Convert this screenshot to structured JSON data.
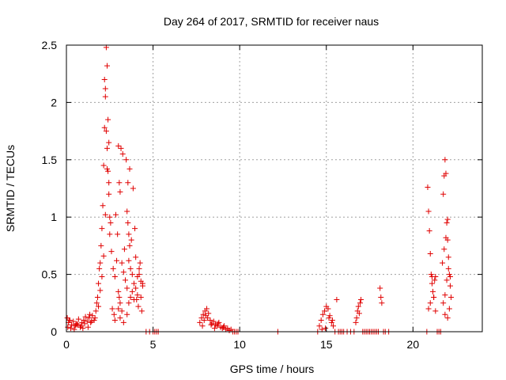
{
  "chart_data": {
    "type": "scatter",
    "title": "Day 264 of 2017, SRMTID for receiver naus",
    "xlabel": "GPS time / hours",
    "ylabel": "SRMTID / TECUs",
    "xlim": [
      0,
      24
    ],
    "ylim": [
      0,
      2.5
    ],
    "xticks": [
      "0",
      "5",
      "10",
      "15",
      "20"
    ],
    "yticks": [
      "0",
      "0.5",
      "1",
      "1.5",
      "2",
      "2.5"
    ],
    "grid": true,
    "legend": "none",
    "marker": "plus",
    "color": "#e00000",
    "x": [
      0.05,
      0.12,
      0.2,
      0.3,
      0.4,
      0.5,
      0.6,
      0.7,
      0.8,
      0.9,
      1.0,
      1.1,
      1.2,
      1.3,
      1.4,
      1.5,
      1.6,
      1.7,
      0.08,
      0.25,
      0.45,
      0.65,
      0.85,
      1.05,
      1.25,
      1.45,
      1.65,
      0.15,
      0.55,
      0.95,
      1.35,
      1.75,
      1.8,
      1.85,
      1.9,
      1.95,
      2.0,
      2.05,
      2.1,
      2.15,
      2.2,
      2.25,
      2.3,
      2.35,
      2.4,
      2.45,
      2.5,
      1.85,
      1.95,
      2.05,
      2.15,
      2.25,
      2.35,
      2.45,
      2.55,
      2.2,
      2.25,
      2.3,
      2.35,
      2.4,
      2.45,
      2.5,
      2.6,
      2.7,
      2.8,
      2.9,
      3.0,
      3.05,
      3.1,
      3.2,
      3.3,
      3.4,
      3.5,
      3.6,
      3.7,
      3.8,
      3.9,
      4.0,
      4.1,
      4.2,
      4.3,
      4.4,
      2.65,
      2.75,
      2.85,
      2.95,
      3.15,
      3.25,
      3.35,
      3.45,
      3.55,
      3.65,
      3.75,
      3.85,
      3.95,
      4.05,
      4.15,
      4.25,
      4.35,
      3.0,
      3.05,
      3.1,
      3.5,
      3.55,
      3.6,
      3.65,
      3.1,
      3.2,
      3.6,
      3.7,
      3.8,
      4.0,
      4.2,
      4.3,
      2.8,
      3.0,
      3.3,
      3.5,
      3.9,
      4.1,
      4.4,
      4.6,
      4.8,
      5.0,
      5.1,
      5.2,
      5.3,
      7.7,
      7.8,
      7.9,
      8.0,
      8.1,
      8.2,
      8.3,
      8.4,
      8.5,
      8.6,
      8.7,
      8.8,
      8.9,
      9.0,
      9.1,
      9.2,
      9.3,
      9.4,
      9.5,
      9.6,
      9.7,
      7.85,
      7.95,
      8.05,
      8.15,
      8.35,
      8.55,
      8.75,
      9.05,
      9.8,
      9.9,
      12.2,
      14.5,
      14.6,
      14.7,
      14.8,
      14.9,
      15.0,
      15.1,
      15.2,
      15.3,
      15.4,
      14.75,
      14.95,
      15.15,
      15.35,
      15.5,
      15.6,
      15.7,
      15.8,
      15.9,
      16.0,
      16.2,
      16.4,
      16.6,
      16.7,
      16.75,
      16.8,
      16.85,
      16.9,
      16.95,
      17.0,
      17.1,
      17.2,
      17.3,
      17.4,
      17.5,
      17.6,
      17.7,
      17.8,
      17.9,
      18.0,
      18.1,
      18.15,
      18.2,
      18.3,
      18.4,
      18.6,
      20.8,
      20.85,
      20.9,
      20.95,
      21.0,
      21.05,
      21.1,
      21.15,
      21.2,
      21.25,
      21.3,
      21.4,
      21.5,
      21.6,
      20.9,
      21.0,
      21.1,
      21.2,
      21.3,
      21.7,
      21.75,
      21.8,
      21.85,
      21.9,
      21.95,
      22.0,
      22.05,
      22.1,
      22.15,
      22.2,
      21.75,
      21.85,
      21.95,
      22.05,
      22.15,
      21.8,
      21.9,
      22.0,
      22.1,
      21.85,
      22.0
    ],
    "y": [
      0.12,
      0.08,
      0.1,
      0.06,
      0.09,
      0.05,
      0.07,
      0.11,
      0.04,
      0.08,
      0.1,
      0.13,
      0.09,
      0.12,
      0.08,
      0.14,
      0.1,
      0.18,
      0.04,
      0.03,
      0.02,
      0.06,
      0.05,
      0.07,
      0.04,
      0.09,
      0.12,
      0.1,
      0.06,
      0.03,
      0.15,
      0.25,
      0.3,
      0.42,
      0.55,
      0.6,
      0.75,
      0.9,
      1.1,
      1.45,
      1.78,
      2.12,
      2.48,
      2.32,
      1.85,
      1.3,
      0.85,
      0.22,
      0.36,
      0.48,
      0.66,
      1.02,
      1.42,
      1.65,
      0.95,
      2.2,
      2.05,
      1.75,
      1.6,
      1.4,
      1.2,
      1.0,
      0.7,
      0.55,
      0.48,
      0.62,
      0.35,
      0.3,
      0.25,
      0.6,
      0.52,
      0.45,
      0.38,
      0.62,
      0.55,
      0.5,
      0.42,
      0.38,
      0.48,
      0.55,
      0.44,
      0.4,
      0.2,
      0.15,
      1.02,
      0.85,
      1.6,
      1.55,
      0.72,
      1.5,
      1.3,
      1.42,
      0.8,
      1.25,
      0.9,
      0.28,
      0.22,
      0.6,
      0.18,
      1.62,
      1.3,
      1.22,
      1.05,
      0.95,
      0.85,
      0.75,
      0.12,
      0.18,
      0.25,
      0.3,
      0.35,
      0.65,
      0.5,
      0.3,
      0.1,
      0.2,
      0.08,
      0.15,
      0.28,
      0.32,
      0.42,
      0.0,
      0.0,
      0.0,
      0.0,
      0.0,
      0.0,
      0.08,
      0.12,
      0.15,
      0.18,
      0.2,
      0.16,
      0.1,
      0.07,
      0.09,
      0.06,
      0.05,
      0.08,
      0.04,
      0.03,
      0.05,
      0.02,
      0.03,
      0.01,
      0.02,
      0.0,
      0.0,
      0.05,
      0.1,
      0.14,
      0.12,
      0.06,
      0.03,
      0.07,
      0.04,
      0.0,
      0.0,
      0.0,
      0.0,
      0.05,
      0.1,
      0.15,
      0.18,
      0.22,
      0.2,
      0.14,
      0.08,
      0.05,
      0.02,
      0.03,
      0.12,
      0.1,
      0.0,
      0.28,
      0.0,
      0.0,
      0.0,
      0.0,
      0.0,
      0.0,
      0.0,
      0.08,
      0.12,
      0.18,
      0.22,
      0.16,
      0.25,
      0.28,
      0.0,
      0.0,
      0.0,
      0.0,
      0.0,
      0.0,
      0.0,
      0.0,
      0.0,
      0.0,
      0.38,
      0.3,
      0.25,
      0.0,
      0.0,
      0.0,
      0.0,
      1.26,
      1.05,
      0.88,
      0.68,
      0.5,
      0.42,
      0.35,
      0.3,
      0.45,
      0.48,
      0.0,
      0.0,
      0.0,
      0.2,
      0.25,
      0.48,
      0.3,
      0.18,
      0.6,
      1.2,
      1.36,
      1.5,
      1.38,
      0.95,
      0.8,
      0.65,
      0.5,
      0.4,
      0.3,
      0.25,
      0.32,
      0.45,
      0.55,
      0.48,
      0.72,
      0.82,
      0.98,
      0.2,
      0.15,
      0.12
    ]
  }
}
